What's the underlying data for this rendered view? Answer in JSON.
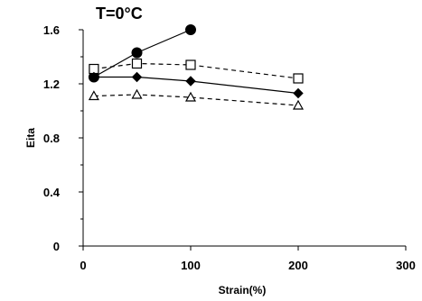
{
  "chart_data": {
    "type": "line",
    "title": "T=0°C",
    "xlabel": "Strain(%)",
    "ylabel": "Eita",
    "xlim": [
      0,
      300
    ],
    "ylim": [
      0,
      1.6
    ],
    "x_ticks": [
      0,
      100,
      200,
      300
    ],
    "y_ticks": [
      0,
      0.4,
      0.8,
      1.2,
      1.6
    ],
    "x_tick_labels": [
      "0",
      "100",
      "200",
      "300"
    ],
    "y_tick_labels": [
      "0",
      "0.4",
      "0.8",
      "1.2",
      "1.6"
    ],
    "grid": false,
    "series": [
      {
        "marker": "circle-filled",
        "line_style": "solid",
        "color": "#000000",
        "x": [
          10,
          50,
          100
        ],
        "y": [
          1.25,
          1.43,
          1.6
        ]
      },
      {
        "marker": "square-open",
        "line_style": "dashed",
        "color": "#000000",
        "x": [
          10,
          50,
          100,
          200
        ],
        "y": [
          1.31,
          1.35,
          1.34,
          1.24
        ]
      },
      {
        "marker": "diamond-filled",
        "line_style": "solid",
        "color": "#000000",
        "x": [
          10,
          50,
          100,
          200
        ],
        "y": [
          1.25,
          1.25,
          1.22,
          1.13
        ]
      },
      {
        "marker": "triangle-open",
        "line_style": "dashed",
        "color": "#000000",
        "x": [
          10,
          50,
          100,
          200
        ],
        "y": [
          1.11,
          1.12,
          1.1,
          1.04
        ]
      }
    ]
  }
}
